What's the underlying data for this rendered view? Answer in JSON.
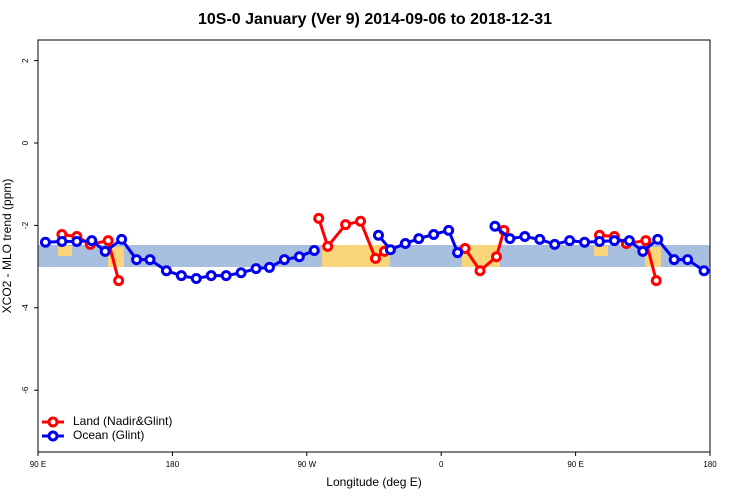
{
  "chart_data": {
    "type": "line",
    "title": "10S-0 January (Ver 9)   2014-09-06 to 2018-12-31",
    "x_label": "Longitude (deg E)",
    "y_label": "XCO2 - MLO trend (ppm)",
    "xlim": [
      90,
      540
    ],
    "xticks": [
      {
        "value": 90,
        "label": "90 E"
      },
      {
        "value": 180,
        "label": "180"
      },
      {
        "value": 270,
        "label": "90 W"
      },
      {
        "value": 360,
        "label": "0"
      },
      {
        "value": 450,
        "label": "90 E"
      },
      {
        "value": 540,
        "label": "180"
      }
    ],
    "ylim": [
      -7.5,
      2.5
    ],
    "yticks": [
      2,
      0,
      -2,
      -4,
      -6
    ],
    "legend": "bottom-left",
    "series": [
      {
        "name": "Land (Nadir&Glint)",
        "color": "#ff0000",
        "x": [
          106,
          116,
          125,
          137,
          144,
          null,
          278,
          284,
          296,
          306,
          316,
          322,
          null,
          376,
          386,
          397,
          402,
          null,
          466,
          476,
          484,
          497,
          504
        ],
        "values": [
          -2.22,
          -2.27,
          -2.46,
          -2.37,
          -3.34,
          null,
          -1.83,
          -2.51,
          -1.98,
          -1.9,
          -2.8,
          -2.63,
          null,
          -2.56,
          -3.1,
          -2.76,
          -2.12,
          null,
          -2.24,
          -2.27,
          -2.44,
          -2.37,
          -3.34
        ]
      },
      {
        "name": "Ocean (Glint)",
        "color": "#0000ee",
        "x": [
          95,
          106,
          116,
          126,
          135,
          146,
          156,
          165,
          176,
          186,
          196,
          206,
          216,
          226,
          236,
          245,
          255,
          265,
          275,
          null,
          318,
          326,
          336,
          345,
          355,
          365,
          371,
          null,
          396,
          406,
          416,
          426,
          436,
          446,
          456,
          466,
          476,
          486,
          495,
          505,
          516,
          525,
          536
        ],
        "values": [
          -2.41,
          -2.39,
          -2.39,
          -2.37,
          -2.63,
          -2.34,
          -2.83,
          -2.83,
          -3.1,
          -3.22,
          -3.29,
          -3.22,
          -3.22,
          -3.15,
          -3.05,
          -3.02,
          -2.83,
          -2.76,
          -2.61,
          null,
          -2.24,
          -2.59,
          -2.44,
          -2.32,
          -2.22,
          -2.12,
          -2.66,
          null,
          -2.02,
          -2.32,
          -2.27,
          -2.34,
          -2.46,
          -2.37,
          -2.41,
          -2.39,
          -2.37,
          -2.37,
          -2.63,
          -2.34,
          -2.83,
          -2.83,
          -3.1
        ]
      }
    ]
  }
}
